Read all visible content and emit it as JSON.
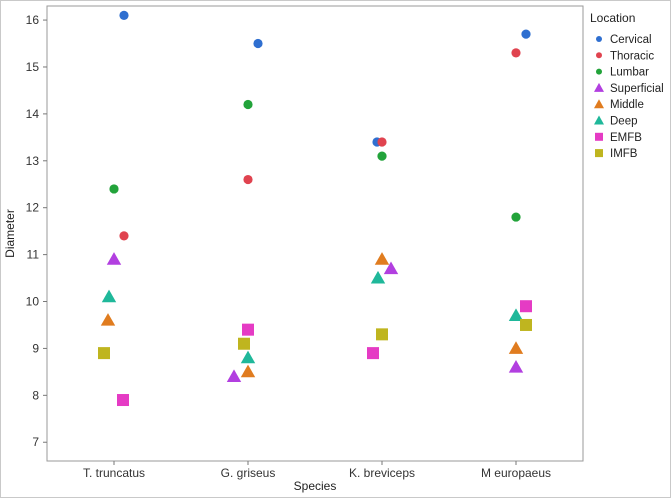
{
  "chart_data": {
    "type": "scatter",
    "xlabel": "Species",
    "ylabel": "Diameter",
    "categories": [
      "T. truncatus",
      "G. griseus",
      "K. breviceps",
      "M europaeus"
    ],
    "ylim": [
      6.6,
      16.3
    ],
    "yticks": [
      7,
      8,
      9,
      10,
      11,
      12,
      13,
      14,
      15,
      16
    ],
    "grid": false,
    "legend": {
      "title": "Location",
      "placement": "right"
    },
    "series": [
      {
        "name": "Cervical",
        "marker": "circle",
        "color": "#2f6fd0",
        "points": [
          {
            "category": "T. truncatus",
            "y": 16.1
          },
          {
            "category": "G. griseus",
            "y": 15.5
          },
          {
            "category": "K. breviceps",
            "y": 13.4
          },
          {
            "category": "M europaeus",
            "y": 15.7
          }
        ]
      },
      {
        "name": "Thoracic",
        "marker": "circle",
        "color": "#e0434f",
        "points": [
          {
            "category": "T. truncatus",
            "y": 11.4
          },
          {
            "category": "G. griseus",
            "y": 12.6
          },
          {
            "category": "K. breviceps",
            "y": 13.4
          },
          {
            "category": "M europaeus",
            "y": 15.3
          }
        ]
      },
      {
        "name": "Lumbar",
        "marker": "circle",
        "color": "#22a33a",
        "points": [
          {
            "category": "T. truncatus",
            "y": 12.4
          },
          {
            "category": "G. griseus",
            "y": 14.2
          },
          {
            "category": "K. breviceps",
            "y": 13.1
          },
          {
            "category": "M europaeus",
            "y": 11.8
          }
        ]
      },
      {
        "name": "Superficial",
        "marker": "triangle",
        "color": "#b23fe0",
        "points": [
          {
            "category": "T. truncatus",
            "y": 10.9
          },
          {
            "category": "G. griseus",
            "y": 8.4
          },
          {
            "category": "K. breviceps",
            "y": 10.7
          },
          {
            "category": "M europaeus",
            "y": 8.6
          }
        ]
      },
      {
        "name": "Middle",
        "marker": "triangle",
        "color": "#e07c1f",
        "points": [
          {
            "category": "T. truncatus",
            "y": 9.6
          },
          {
            "category": "G. griseus",
            "y": 8.5
          },
          {
            "category": "K. breviceps",
            "y": 10.9
          },
          {
            "category": "M europaeus",
            "y": 9.0
          }
        ]
      },
      {
        "name": "Deep",
        "marker": "triangle",
        "color": "#1fb89a",
        "points": [
          {
            "category": "T. truncatus",
            "y": 10.1
          },
          {
            "category": "G. griseus",
            "y": 8.8
          },
          {
            "category": "K. breviceps",
            "y": 10.5
          },
          {
            "category": "M europaeus",
            "y": 9.7
          }
        ]
      },
      {
        "name": "EMFB",
        "marker": "square",
        "color": "#e53bc4",
        "points": [
          {
            "category": "T. truncatus",
            "y": 7.9
          },
          {
            "category": "G. griseus",
            "y": 9.4
          },
          {
            "category": "K. breviceps",
            "y": 8.9
          },
          {
            "category": "M europaeus",
            "y": 9.9
          }
        ]
      },
      {
        "name": "IMFB",
        "marker": "square",
        "color": "#bfb51f",
        "points": [
          {
            "category": "T. truncatus",
            "y": 8.9
          },
          {
            "category": "G. griseus",
            "y": 9.1
          },
          {
            "category": "K. breviceps",
            "y": 9.3
          },
          {
            "category": "M europaeus",
            "y": 9.5
          }
        ]
      }
    ]
  }
}
